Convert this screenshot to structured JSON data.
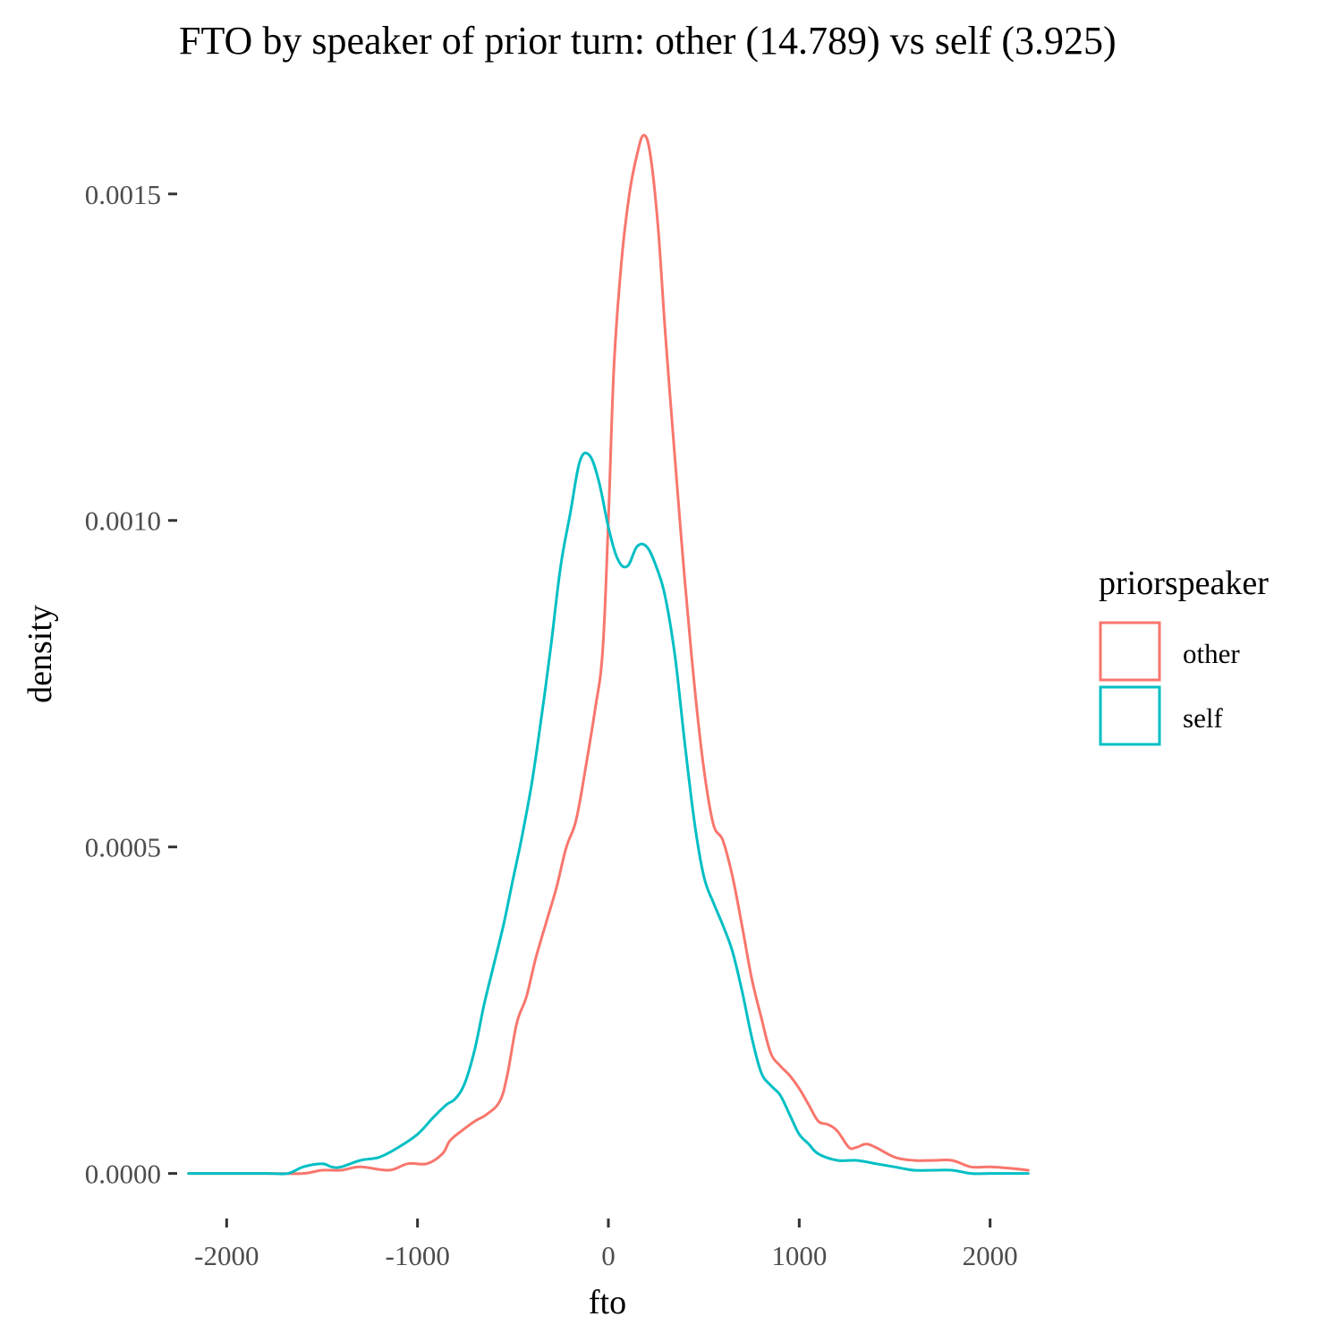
{
  "chart_data": {
    "type": "line",
    "title": "FTO by speaker of prior turn: other (14.789) vs self (3.925)",
    "xlabel": "fto",
    "ylabel": "density",
    "xlim": [
      -2250,
      2250
    ],
    "ylim": [
      -8e-05,
      0.00166
    ],
    "x_ticks": [
      -2000,
      -1000,
      0,
      1000,
      2000
    ],
    "x_tick_labels": [
      "-2000",
      "-1000",
      "0",
      "1000",
      "2000"
    ],
    "y_ticks": [
      0,
      0.0005,
      0.001,
      0.0015
    ],
    "y_tick_labels": [
      "0.0000",
      "0.0005",
      "0.0010",
      "0.0015"
    ],
    "grid": false,
    "legend": {
      "title": "priorspeaker",
      "position": "right",
      "entries": [
        "other",
        "self"
      ]
    },
    "series": [
      {
        "name": "other",
        "color": "#F8766D",
        "points": [
          [
            -2200,
            0.0
          ],
          [
            -1800,
            0.0
          ],
          [
            -1600,
            0.0
          ],
          [
            -1500,
            5e-06
          ],
          [
            -1400,
            5e-06
          ],
          [
            -1300,
            1e-05
          ],
          [
            -1150,
            5e-06
          ],
          [
            -1050,
            1.5e-05
          ],
          [
            -950,
            1.5e-05
          ],
          [
            -870,
            3e-05
          ],
          [
            -830,
            5e-05
          ],
          [
            -770,
            6.5e-05
          ],
          [
            -700,
            8e-05
          ],
          [
            -640,
            9e-05
          ],
          [
            -570,
            0.00011
          ],
          [
            -530,
            0.00015
          ],
          [
            -480,
            0.00023
          ],
          [
            -430,
            0.00027
          ],
          [
            -380,
            0.00033
          ],
          [
            -320,
            0.00039
          ],
          [
            -270,
            0.00044
          ],
          [
            -220,
            0.0005
          ],
          [
            -170,
            0.00054
          ],
          [
            -120,
            0.00062
          ],
          [
            -70,
            0.00071
          ],
          [
            -30,
            0.0008
          ],
          [
            0,
            0.001
          ],
          [
            30,
            0.00124
          ],
          [
            70,
            0.0014
          ],
          [
            110,
            0.0015
          ],
          [
            150,
            0.00156
          ],
          [
            185,
            0.00159
          ],
          [
            220,
            0.00156
          ],
          [
            260,
            0.00145
          ],
          [
            300,
            0.00128
          ],
          [
            350,
            0.00109
          ],
          [
            400,
            0.00091
          ],
          [
            450,
            0.00075
          ],
          [
            500,
            0.00062
          ],
          [
            550,
            0.000535
          ],
          [
            600,
            0.00051
          ],
          [
            650,
            0.000455
          ],
          [
            700,
            0.00038
          ],
          [
            750,
            0.0003
          ],
          [
            800,
            0.00024
          ],
          [
            850,
            0.000185
          ],
          [
            900,
            0.000165
          ],
          [
            950,
            0.00015
          ],
          [
            1000,
            0.00013
          ],
          [
            1050,
            0.000105
          ],
          [
            1100,
            8e-05
          ],
          [
            1150,
            7.5e-05
          ],
          [
            1200,
            6.5e-05
          ],
          [
            1260,
            4e-05
          ],
          [
            1300,
            4e-05
          ],
          [
            1350,
            4.5e-05
          ],
          [
            1400,
            4e-05
          ],
          [
            1500,
            2.5e-05
          ],
          [
            1600,
            2e-05
          ],
          [
            1700,
            2e-05
          ],
          [
            1800,
            2e-05
          ],
          [
            1900,
            1e-05
          ],
          [
            2000,
            1e-05
          ],
          [
            2100,
            8e-06
          ],
          [
            2200,
            5e-06
          ]
        ]
      },
      {
        "name": "self",
        "color": "#00BFC4",
        "points": [
          [
            -2200,
            0.0
          ],
          [
            -1800,
            0.0
          ],
          [
            -1680,
            0.0
          ],
          [
            -1600,
            1e-05
          ],
          [
            -1500,
            1.5e-05
          ],
          [
            -1450,
            1e-05
          ],
          [
            -1400,
            1e-05
          ],
          [
            -1300,
            2e-05
          ],
          [
            -1200,
            2.5e-05
          ],
          [
            -1100,
            4e-05
          ],
          [
            -1000,
            6e-05
          ],
          [
            -920,
            8.5e-05
          ],
          [
            -850,
            0.000105
          ],
          [
            -800,
            0.000115
          ],
          [
            -750,
            0.00014
          ],
          [
            -700,
            0.00019
          ],
          [
            -650,
            0.00026
          ],
          [
            -600,
            0.00032
          ],
          [
            -550,
            0.00038
          ],
          [
            -500,
            0.00045
          ],
          [
            -450,
            0.00052
          ],
          [
            -400,
            0.0006
          ],
          [
            -350,
            0.0007
          ],
          [
            -300,
            0.00081
          ],
          [
            -250,
            0.00093
          ],
          [
            -200,
            0.00101
          ],
          [
            -150,
            0.00109
          ],
          [
            -100,
            0.0011
          ],
          [
            -50,
            0.00106
          ],
          [
            0,
            0.00099
          ],
          [
            50,
            0.00094
          ],
          [
            100,
            0.00093
          ],
          [
            150,
            0.00096
          ],
          [
            200,
            0.00096
          ],
          [
            250,
            0.00093
          ],
          [
            300,
            0.00088
          ],
          [
            350,
            0.00079
          ],
          [
            400,
            0.00066
          ],
          [
            450,
            0.00054
          ],
          [
            500,
            0.000455
          ],
          [
            550,
            0.000415
          ],
          [
            600,
            0.00038
          ],
          [
            650,
            0.00034
          ],
          [
            700,
            0.00028
          ],
          [
            750,
            0.00021
          ],
          [
            800,
            0.000155
          ],
          [
            850,
            0.000135
          ],
          [
            900,
            0.00012
          ],
          [
            950,
            9e-05
          ],
          [
            1000,
            6e-05
          ],
          [
            1050,
            4.5e-05
          ],
          [
            1100,
            3e-05
          ],
          [
            1200,
            2e-05
          ],
          [
            1300,
            2e-05
          ],
          [
            1400,
            1.5e-05
          ],
          [
            1500,
            1e-05
          ],
          [
            1600,
            5e-06
          ],
          [
            1700,
            5e-06
          ],
          [
            1800,
            5e-06
          ],
          [
            1900,
            0.0
          ],
          [
            2000,
            0.0
          ],
          [
            2100,
            0.0
          ],
          [
            2200,
            0.0
          ]
        ]
      }
    ]
  }
}
